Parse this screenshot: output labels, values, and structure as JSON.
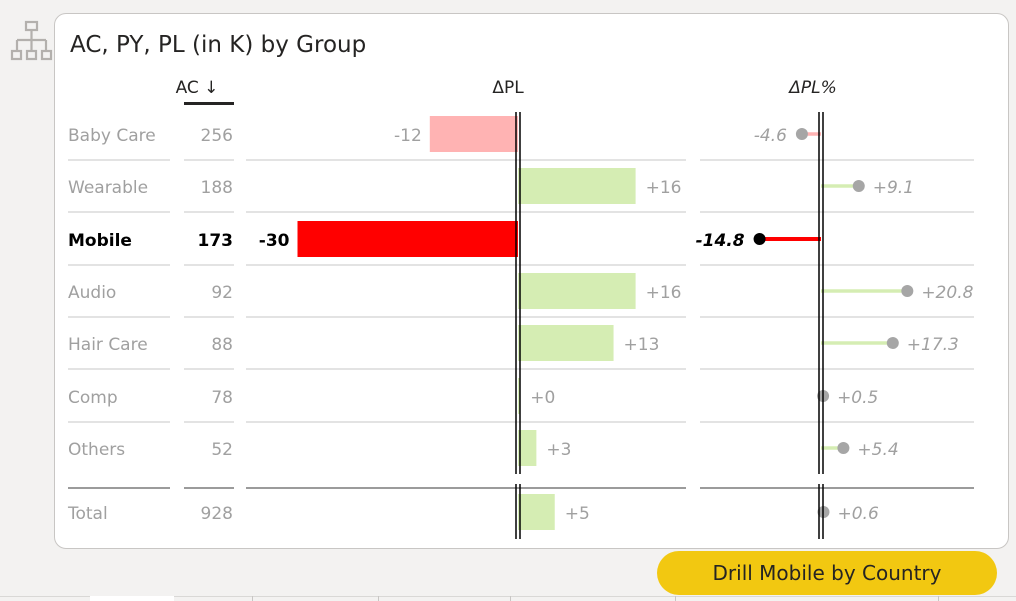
{
  "title": "AC, PY, PL (in K) by Group",
  "drill_button_label": "Drill Mobile by Country",
  "columns": {
    "ac": "AC ↓",
    "dpl": "ΔPL",
    "dplpct": "ΔPL%"
  },
  "colors": {
    "positive": "#d5edb3",
    "negative_light": "#ffb3b3",
    "negative_highlight": "#ff0000",
    "dim_text": "#a0a0a0",
    "highlight_text": "#000000",
    "button": "#f2c811"
  },
  "icons": {
    "hierarchy": "hierarchy-icon"
  },
  "chart_data": {
    "type": "table",
    "highlighted": "Mobile",
    "rows": [
      {
        "group": "Baby Care",
        "ac": "256",
        "dpl": -12,
        "dpl_label": "-12",
        "dpl_pct": -4.6,
        "dpl_pct_label": "-4.6"
      },
      {
        "group": "Wearable",
        "ac": "188",
        "dpl": 16,
        "dpl_label": "+16",
        "dpl_pct": 9.1,
        "dpl_pct_label": "+9.1"
      },
      {
        "group": "Mobile",
        "ac": "173",
        "dpl": -30,
        "dpl_label": "-30",
        "dpl_pct": -14.8,
        "dpl_pct_label": "-14.8"
      },
      {
        "group": "Audio",
        "ac": "92",
        "dpl": 16,
        "dpl_label": "+16",
        "dpl_pct": 20.8,
        "dpl_pct_label": "+20.8"
      },
      {
        "group": "Hair Care",
        "ac": "88",
        "dpl": 13,
        "dpl_label": "+13",
        "dpl_pct": 17.3,
        "dpl_pct_label": "+17.3"
      },
      {
        "group": "Comp",
        "ac": "78",
        "dpl": 0.3,
        "dpl_label": "+0",
        "dpl_pct": 0.5,
        "dpl_pct_label": "+0.5"
      },
      {
        "group": "Others",
        "ac": "52",
        "dpl": 2.5,
        "dpl_label": "+3",
        "dpl_pct": 5.4,
        "dpl_pct_label": "+5.4"
      }
    ],
    "total": {
      "group": "Total",
      "ac": "928",
      "dpl": 5,
      "dpl_label": "+5",
      "dpl_pct": 0.6,
      "dpl_pct_label": "+0.6"
    }
  }
}
